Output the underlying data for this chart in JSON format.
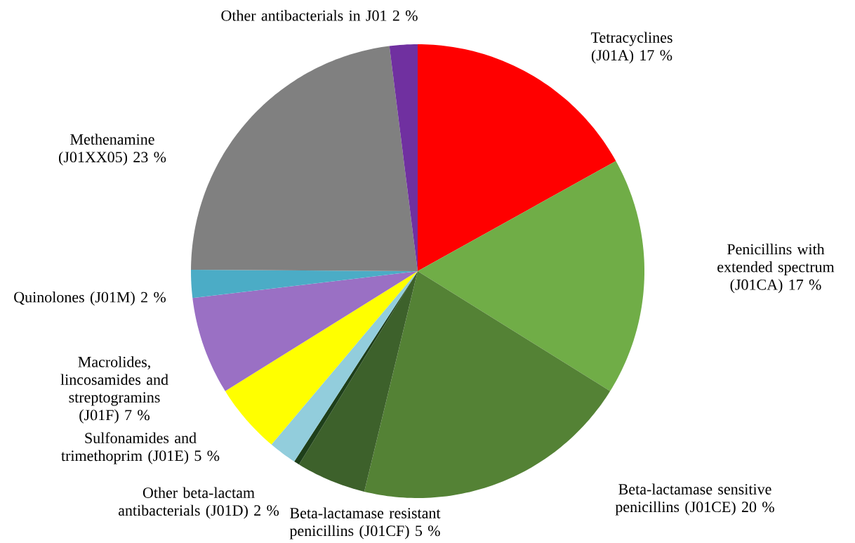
{
  "chart_data": {
    "type": "pie",
    "categories": [
      "Tetracyclines (J01A)",
      "Penicillins with extended spectrum (J01CA)",
      "Beta-lactamase sensitive penicillins (J01CE)",
      "Beta-lactamase resistant penicillins (J01CF)",
      null,
      "Other beta-lactam antibacterials (J01D)",
      "Sulfonamides and trimethoprim (J01E)",
      "Macrolides, lincosamides and streptogramins (J01F)",
      "Quinolones (J01M)",
      "Methenamine (J01XX05)",
      "Other antibacterials in J01"
    ],
    "values": [
      17,
      17,
      20,
      5,
      0.4,
      2,
      5,
      7,
      2,
      23,
      2
    ],
    "colors": [
      "#ff0000",
      "#70ad47",
      "#548235",
      "#3d612b",
      "#1e3f1a",
      "#92cddc",
      "#ffff00",
      "#9a70c4",
      "#4bacc6",
      "#808080",
      "#7030a0"
    ],
    "value_labels": [
      "17 %",
      "17 %",
      "20 %",
      "5 %",
      null,
      "2 %",
      "5 %",
      "7 %",
      "2 %",
      "23 %",
      "2 %"
    ]
  }
}
